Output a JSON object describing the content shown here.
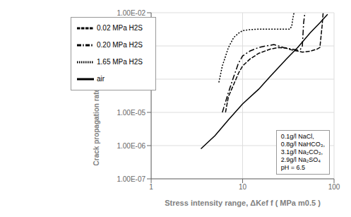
{
  "chart_data": {
    "type": "line",
    "xlabel": "Stress intensity range, ΔKef f  ( MPa m0.5 )",
    "ylabel": "Crack propagation rate, da/dN (mm/cycle)",
    "annotation": "0.1g/l NaCl,\n0.8g/l NaHCO₃,\n3.1g/l Na₂CO₃,\n2.9g/l Na₂SO₄\npH = 6.5",
    "log": true,
    "grid": true,
    "legend": "upper left",
    "xlim": [
      1,
      100
    ],
    "ylim": [
      1e-07,
      0.01
    ],
    "xticks": [
      1,
      10,
      100
    ],
    "yticks": [
      {
        "value": 1e-07,
        "label": "1.00E-07"
      },
      {
        "value": 1e-06,
        "label": "1.00E-06"
      },
      {
        "value": 1e-05,
        "label": "1.00E-05"
      },
      {
        "value": 0.0001,
        "label": "1.00E-04"
      },
      {
        "value": 0.001,
        "label": "1.00E-03"
      },
      {
        "value": 0.01,
        "label": "1.00E-02"
      }
    ],
    "series": [
      {
        "name": "air",
        "color": "#000000",
        "line_style": "solid",
        "x": [
          3.5,
          5.0,
          7.0,
          10.0,
          15.0,
          20.0,
          30.0,
          40.0,
          55.0,
          70.0,
          85.0
        ],
        "values": [
          8e-07,
          2e-06,
          6e-06,
          1.8e-05,
          5e-05,
          0.00012,
          0.0004,
          0.0009,
          0.0025,
          0.005,
          0.009
        ]
      },
      {
        "name": "1.65 MPa H2S",
        "color": "#000000",
        "line_style": "dotted",
        "x": [
          5.5,
          6.0,
          7.0,
          8.0,
          9.0,
          10.0,
          12.0,
          15.0,
          20.0,
          25.0,
          30.0,
          33.0,
          34.5,
          35.5,
          36.5,
          37.5
        ],
        "values": [
          8e-05,
          0.00025,
          0.0009,
          0.0018,
          0.0024,
          0.0029,
          0.0031,
          0.0032,
          0.0032,
          0.0032,
          0.0032,
          0.0032,
          0.004,
          0.007,
          0.01,
          0.01
        ]
      },
      {
        "name": "0.20 MPa H2S",
        "color": "#000000",
        "line_style": "dashdot",
        "x": [
          6.0,
          7.0,
          8.0,
          9.0,
          10.0,
          12.0,
          15.0,
          18.0,
          22.0,
          28.0,
          35.0,
          40.0,
          43.0,
          45.0,
          46.5,
          48.0
        ],
        "values": [
          1e-05,
          4e-05,
          0.00012,
          0.0003,
          0.0005,
          0.0007,
          0.0009,
          0.001,
          0.0011,
          0.0009,
          0.0008,
          0.00075,
          0.0008,
          0.001,
          0.005,
          0.01
        ]
      },
      {
        "name": "0.02 MPa H2S",
        "color": "#000000",
        "line_style": "dashed",
        "x": [
          6.5,
          7.0,
          8.0,
          9.0,
          10.0,
          12.0,
          15.0,
          20.0,
          25.0,
          30.0,
          35.0,
          40.0,
          45.0,
          55.0,
          65.0,
          70.0,
          74.0,
          76.0
        ],
        "values": [
          1e-05,
          3e-05,
          7e-05,
          0.00015,
          0.00025,
          0.0004,
          0.0006,
          0.0008,
          0.0009,
          0.00085,
          0.00075,
          0.0007,
          0.00065,
          0.0007,
          0.0008,
          0.0009,
          0.004,
          0.01
        ]
      }
    ]
  }
}
